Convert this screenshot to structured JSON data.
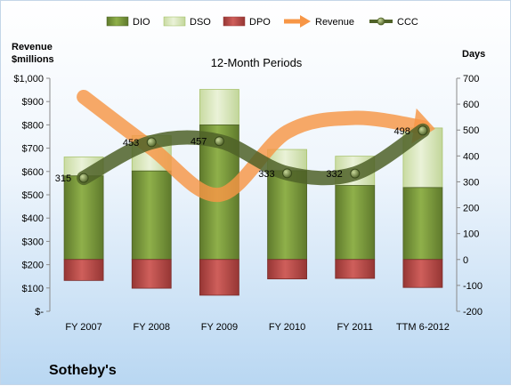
{
  "chart_data": {
    "type": "bar",
    "title": "12-Month Periods",
    "company": "Sotheby's",
    "y_left_label": [
      "Revenue",
      "$millions"
    ],
    "y_right_label": "Days",
    "categories": [
      "FY 2007",
      "FY 2008",
      "FY 2009",
      "FY 2010",
      "FY 2011",
      "TTM 6-2012"
    ],
    "y_left_ticks": [
      "$-",
      "$100",
      "$200",
      "$300",
      "$400",
      "$500",
      "$600",
      "$700",
      "$800",
      "$900",
      "$1,000"
    ],
    "y_right_ticks": [
      "-200",
      "-100",
      "0",
      "100",
      "200",
      "300",
      "400",
      "500",
      "600",
      "700"
    ],
    "y_left_lim": [
      0,
      1000
    ],
    "y_right_lim": [
      -200,
      700
    ],
    "stack_base_days": 0,
    "series": [
      {
        "name": "DIO",
        "type": "stacked-bar",
        "axis": "right",
        "color": "#77933c",
        "values": [
          323,
          342,
          520,
          343,
          286,
          278
        ]
      },
      {
        "name": "DSO",
        "type": "stacked-bar",
        "axis": "right",
        "color": "#d7e4bd",
        "values": [
          73,
          136,
          137,
          82,
          113,
          230
        ]
      },
      {
        "name": "DPO",
        "type": "bar",
        "axis": "right",
        "color": "#c0504d",
        "values": [
          -81,
          -111,
          -138,
          -75,
          -73,
          -108
        ]
      },
      {
        "name": "Revenue",
        "type": "line",
        "axis": "left",
        "color": "#f79646",
        "values": [
          920,
          700,
          500,
          770,
          830,
          790
        ]
      },
      {
        "name": "CCC",
        "type": "line",
        "axis": "right",
        "color": "#4f6228",
        "values": [
          315,
          453,
          457,
          333,
          332,
          498
        ]
      }
    ],
    "data_labels": [
      "315",
      "453",
      "457",
      "333",
      "332",
      "498"
    ],
    "legend": [
      "DIO",
      "DSO",
      "DPO",
      "Revenue",
      "CCC"
    ],
    "legend_position": "top",
    "grid": false
  }
}
